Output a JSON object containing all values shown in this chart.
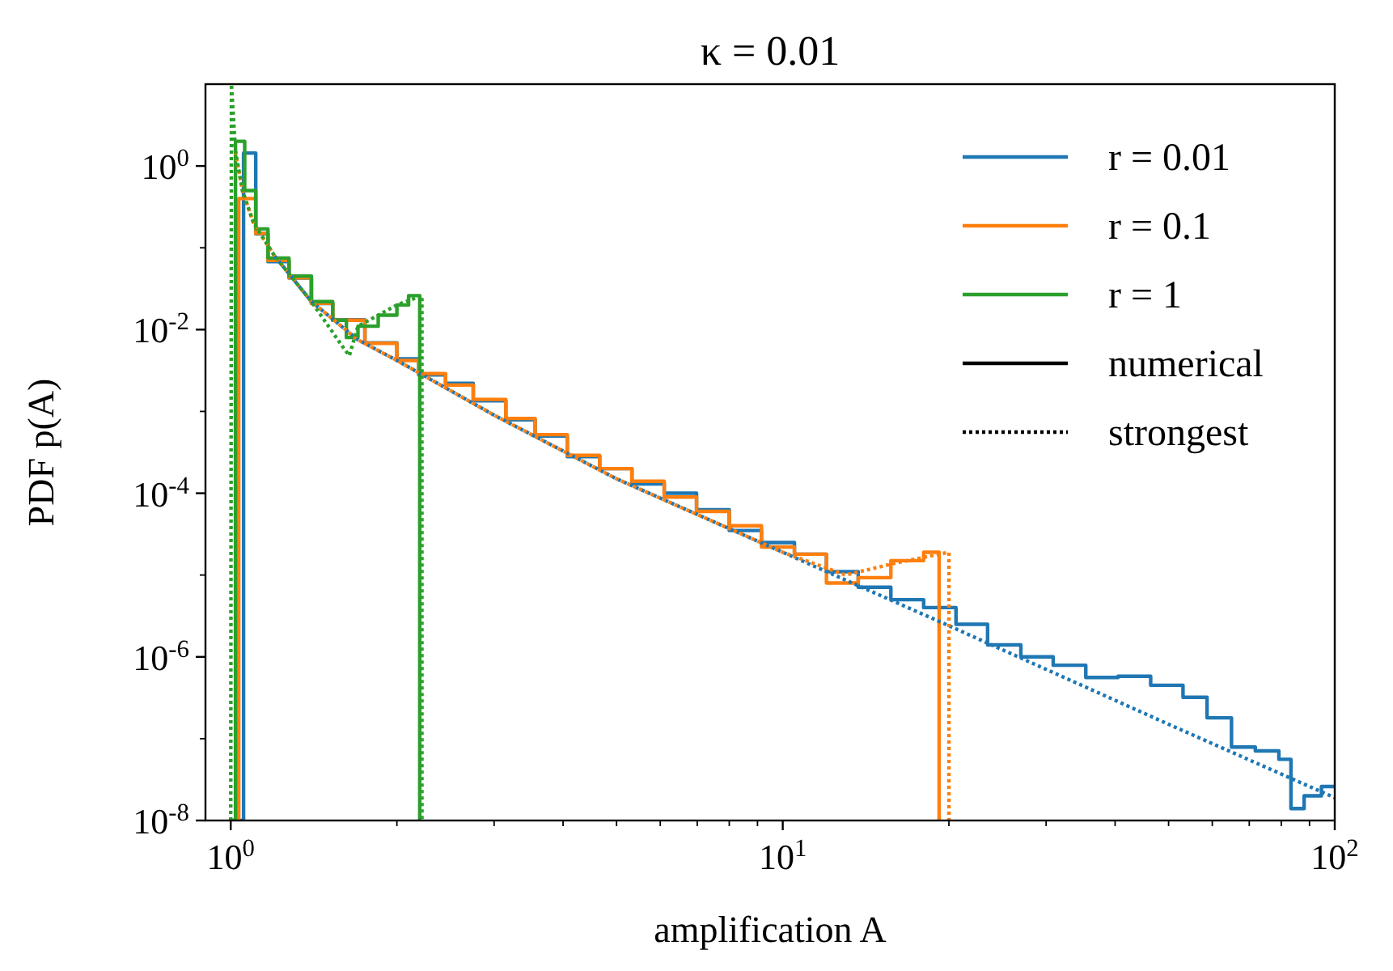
{
  "chart_data": {
    "type": "step",
    "title": "κ = 0.01",
    "xlabel": "amplification A",
    "ylabel": "PDF p(A)",
    "log": "xy",
    "grid": false,
    "legend": "top right",
    "xlim": [
      0.9,
      100
    ],
    "ylim": [
      1e-08,
      10
    ],
    "xticks": [
      {
        "value": 1,
        "label": "10$^{0}$"
      },
      {
        "value": 2,
        "label": null
      },
      {
        "value": 3,
        "label": null
      },
      {
        "value": 4,
        "label": null
      },
      {
        "value": 5,
        "label": null
      },
      {
        "value": 6,
        "label": null
      },
      {
        "value": 7,
        "label": null
      },
      {
        "value": 8,
        "label": null
      },
      {
        "value": 9,
        "label": null
      },
      {
        "value": 10,
        "label": "10$^{1}$"
      },
      {
        "value": 20,
        "label": null
      },
      {
        "value": 30,
        "label": null
      },
      {
        "value": 40,
        "label": null
      },
      {
        "value": 50,
        "label": null
      },
      {
        "value": 60,
        "label": null
      },
      {
        "value": 70,
        "label": null
      },
      {
        "value": 80,
        "label": null
      },
      {
        "value": 90,
        "label": null
      },
      {
        "value": 100,
        "label": "10$^{2}$"
      }
    ],
    "yticks": [
      {
        "value": 1e-08,
        "label": "10$^{-8}$"
      },
      {
        "value": 1e-07,
        "label": null
      },
      {
        "value": 1e-06,
        "label": "10$^{-6}$"
      },
      {
        "value": 1e-05,
        "label": null
      },
      {
        "value": 0.0001,
        "label": "10$^{-4}$"
      },
      {
        "value": 0.001,
        "label": null
      },
      {
        "value": 0.01,
        "label": "10$^{-2}$"
      },
      {
        "value": 0.1,
        "label": null
      },
      {
        "value": 1,
        "label": "10$^{0}$"
      }
    ],
    "series": [
      {
        "name": "r = 0.01",
        "color": "#1f77b4",
        "line_style": "solid",
        "x": [
          1.0,
          1.055,
          1.11,
          1.168,
          1.275,
          1.4,
          1.53,
          1.75,
          2.0,
          2.19,
          2.45,
          2.75,
          3.15,
          3.56,
          4.07,
          4.66,
          5.33,
          6.1,
          6.98,
          8.0,
          9.15,
          10.5,
          12.0,
          13.7,
          15.7,
          18.0,
          20.6,
          23.5,
          27.0,
          30.9,
          35.4,
          40.5,
          46.4,
          53.1,
          58.7,
          65.0,
          71.8,
          79.2,
          83.3,
          88.0,
          94.6,
          100
        ],
        "values": [
          1e-08,
          1.44,
          0.148,
          0.0676,
          0.0427,
          0.0209,
          0.0132,
          0.0069,
          0.0044,
          0.0028,
          0.0022,
          0.00135,
          0.00079,
          0.0005,
          0.00028,
          0.0002,
          0.00013,
          0.0001,
          6.3e-05,
          3.5e-05,
          2.5e-05,
          1.8e-05,
          1.1e-05,
          7.1e-06,
          5e-06,
          4e-06,
          2.5e-06,
          1.4e-06,
          1e-06,
          7.9e-07,
          5.6e-07,
          5.8e-07,
          4.5e-07,
          3.2e-07,
          1.8e-07,
          7.9e-08,
          7.1e-08,
          5.6e-08,
          1.4e-08,
          2e-08,
          2.6e-08,
          2.6e-08
        ]
      },
      {
        "name": "r = 0.1",
        "color": "#ff7f0e",
        "line_style": "solid",
        "x": [
          1.0,
          1.034,
          1.11,
          1.168,
          1.275,
          1.4,
          1.53,
          1.75,
          2.0,
          2.19,
          2.45,
          2.75,
          3.15,
          3.56,
          4.07,
          4.66,
          5.33,
          6.1,
          6.98,
          8.0,
          9.15,
          10.5,
          12.0,
          13.7,
          15.7,
          18.0,
          19.2
        ],
        "values": [
          1e-08,
          0.4,
          0.15,
          0.07,
          0.043,
          0.021,
          0.013,
          0.0068,
          0.0042,
          0.0029,
          0.0021,
          0.0014,
          0.00082,
          0.00052,
          0.00029,
          0.0002,
          0.00014,
          9e-05,
          6e-05,
          4e-05,
          2.2e-05,
          1.8e-05,
          8e-06,
          9.3e-06,
          1.5e-05,
          1.9e-05,
          1e-08
        ]
      },
      {
        "name": "r = 1",
        "color": "#2ca02c",
        "line_style": "solid",
        "x": [
          1.0,
          1.02,
          1.06,
          1.11,
          1.168,
          1.275,
          1.4,
          1.53,
          1.62,
          1.7,
          1.85,
          2.0,
          2.1,
          2.2
        ],
        "values": [
          1e-08,
          2.0,
          0.5,
          0.17,
          0.075,
          0.045,
          0.022,
          0.013,
          0.008,
          0.011,
          0.015,
          0.02,
          0.026,
          1e-08
        ]
      },
      {
        "color": "#1f77b4",
        "type": "line",
        "line_style": "dotted",
        "x": [
          1.2,
          1.4,
          1.7,
          2,
          3,
          5,
          10,
          20,
          50,
          100
        ],
        "values": [
          0.08,
          0.022,
          0.0075,
          0.0042,
          0.0009,
          0.00015,
          1.9e-05,
          2.4e-06,
          1.5e-07,
          1.9e-08
        ]
      },
      {
        "color": "#ff7f0e",
        "type": "line",
        "line_style": "dotted",
        "x": [
          1.02,
          1.05,
          1.1,
          1.2,
          1.4,
          1.7,
          2,
          3,
          5,
          10,
          13,
          16,
          20,
          20
        ],
        "values": [
          1.5,
          0.5,
          0.2,
          0.08,
          0.022,
          0.0075,
          0.0042,
          0.0009,
          0.00015,
          1.9e-05,
          1e-05,
          1.4e-05,
          1.9e-05,
          1e-08
        ]
      },
      {
        "color": "#2ca02c",
        "type": "line",
        "line_style": "dotted",
        "x": [
          1.0,
          1.003,
          1.02,
          1.05,
          1.1,
          1.2,
          1.4,
          1.6,
          1.64,
          1.7,
          2.0,
          2.22,
          2.22
        ],
        "values": [
          1e-08,
          10,
          1.5,
          0.5,
          0.2,
          0.08,
          0.022,
          0.006,
          0.0048,
          0.011,
          0.02,
          0.026,
          1e-08
        ]
      },
      {
        "name": "numerical",
        "color": "#000000",
        "type": "line",
        "line_style": "solid"
      },
      {
        "name": "strongest",
        "color": "#000000",
        "type": "line",
        "line_style": "dotted"
      }
    ]
  }
}
